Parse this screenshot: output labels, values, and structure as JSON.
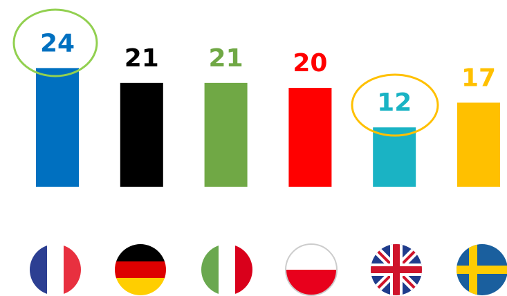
{
  "chart_data": {
    "type": "bar",
    "categories": [
      null,
      null,
      null,
      null,
      null,
      null
    ],
    "values": [
      24,
      21,
      21,
      20,
      12,
      17
    ],
    "colors": [
      "#0070c0",
      "#000000",
      "#70a845",
      "#ff0000",
      "#1ab3c4",
      "#ffc000"
    ]
  }
}
